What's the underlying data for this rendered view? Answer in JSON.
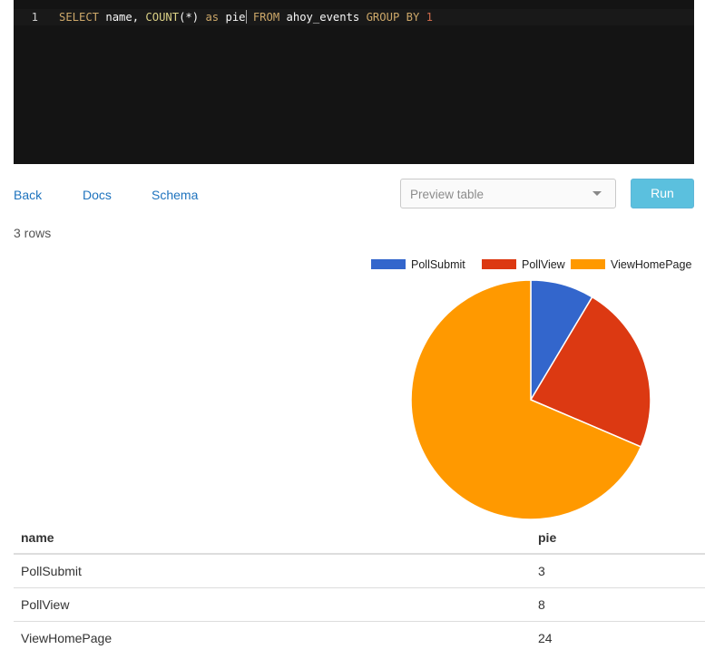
{
  "editor": {
    "line_number": "1",
    "tokens": [
      {
        "text": "SELECT",
        "kind": "kw"
      },
      {
        "text": " name, ",
        "kind": "plain"
      },
      {
        "text": "COUNT",
        "kind": "fn"
      },
      {
        "text": "(*) ",
        "kind": "plain"
      },
      {
        "text": "as",
        "kind": "kw"
      },
      {
        "text": " pie",
        "kind": "plain"
      },
      {
        "text": "cursor",
        "kind": "cursor"
      },
      {
        "text": " ",
        "kind": "plain"
      },
      {
        "text": "FROM",
        "kind": "kw"
      },
      {
        "text": " ahoy_events ",
        "kind": "plain"
      },
      {
        "text": "GROUP BY",
        "kind": "kw"
      },
      {
        "text": " ",
        "kind": "plain"
      },
      {
        "text": "1",
        "kind": "num"
      }
    ]
  },
  "toolbar": {
    "back_label": "Back",
    "docs_label": "Docs",
    "schema_label": "Schema",
    "table_select_placeholder": "Preview table",
    "run_label": "Run"
  },
  "results": {
    "row_count": "3 rows",
    "columns": [
      "name",
      "pie"
    ],
    "rows": [
      [
        "PollSubmit",
        "3"
      ],
      [
        "PollView",
        "8"
      ],
      [
        "ViewHomePage",
        "24"
      ]
    ]
  },
  "colors": {
    "PollSubmit": "#3366cc",
    "PollView": "#dc3912",
    "ViewHomePage": "#ff9900",
    "link": "#1e73be",
    "run_button": "#5bc0de"
  },
  "icons": {
    "select_caret": "chevron-down-icon"
  },
  "chart_data": {
    "type": "pie",
    "categories": [
      "PollSubmit",
      "PollView",
      "ViewHomePage"
    ],
    "values": [
      3,
      8,
      24
    ],
    "colors": [
      "#3366cc",
      "#dc3912",
      "#ff9900"
    ],
    "legend": "top-right"
  }
}
